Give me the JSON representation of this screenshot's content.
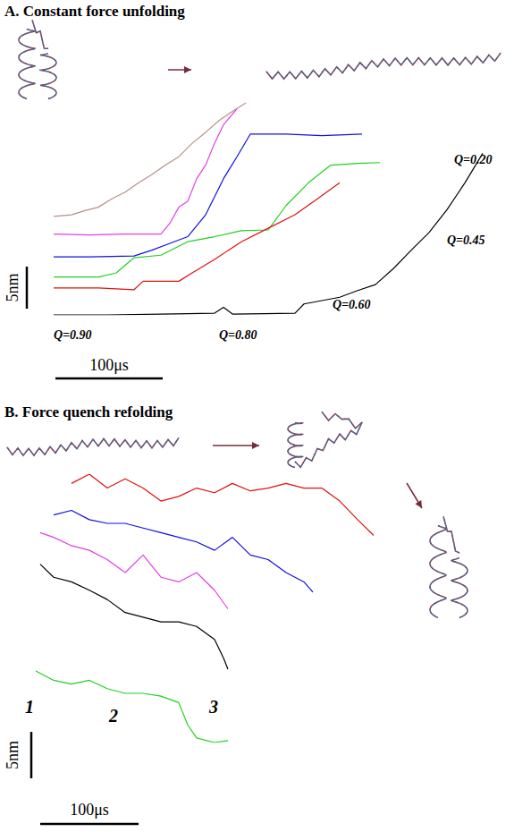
{
  "chart_data": [
    {
      "type": "line",
      "title": "A. Constant force unfolding",
      "tick_labels": false,
      "grid": false,
      "scale_bars": {
        "x": 100,
        "x_label": "100μs",
        "y": 5,
        "y_label": "5nm"
      },
      "annotations": [
        "Q=0.90",
        "Q=0.80",
        "Q=0.60",
        "Q=0.45",
        "Q=0.20"
      ],
      "series": [
        {
          "color": "#b5908a",
          "x": [
            45.8,
            62.5,
            75,
            87.5,
            100,
            112.5,
            125,
            137.5,
            150,
            162.5,
            175,
            187.5,
            200,
            212.5,
            225
          ],
          "values": [
            13.6,
            13.8,
            14.3,
            14.7,
            15.7,
            16.5,
            17.6,
            18.6,
            19.7,
            20.7,
            22.3,
            23.6,
            25,
            26.1,
            27.1
          ]
        },
        {
          "color": "#e040e0",
          "x": [
            45.8,
            79.2,
            112.5,
            145.8,
            154.2,
            162.5,
            170.8,
            179.2,
            187.5,
            195.8,
            204.2,
            216.7
          ],
          "values": [
            11.5,
            11.4,
            11.5,
            11.5,
            12.8,
            14.7,
            15.4,
            18.1,
            19.7,
            22.3,
            24.5,
            26.4
          ]
        },
        {
          "color": "#1010e0",
          "x": [
            45.8,
            79.2,
            120.8,
            137.5,
            154.2,
            170.8,
            187.5,
            204.2,
            216.7,
            229.2,
            262.5,
            295.8,
            333.3
          ],
          "values": [
            8.8,
            8.8,
            8.9,
            9.6,
            10.4,
            11.2,
            13.8,
            18.1,
            20.7,
            23.4,
            23.4,
            23.2,
            23.4
          ]
        },
        {
          "color": "#20d020",
          "x": [
            45.8,
            87.5,
            104.2,
            120.8,
            145.8,
            170.8,
            195.8,
            220.8,
            245.8,
            262.5,
            283.3,
            304.2,
            329.2,
            350
          ],
          "values": [
            6.4,
            6.4,
            6.9,
            8.7,
            9.0,
            10.6,
            11.2,
            11.9,
            12.0,
            14.9,
            17.6,
            19.7,
            19.9,
            20.0
          ]
        },
        {
          "color": "#e01010",
          "x": [
            45.8,
            87.5,
            120.8,
            129.2,
            162.5,
            175,
            195.8,
            220.8,
            245.8,
            270.8,
            291.7,
            312.5
          ],
          "values": [
            5.1,
            5.1,
            4.9,
            5.9,
            5.9,
            6.9,
            8.5,
            10.6,
            12.2,
            13.8,
            15.7,
            17.6
          ]
        },
        {
          "color": "#000000",
          "x": [
            45.8,
            95.8,
            145.8,
            195.8,
            204.2,
            212.5,
            270.8,
            279.2,
            312.5,
            329.2,
            345.8,
            362.5,
            379.2,
            395.8,
            412.5,
            429.2,
            445.8
          ],
          "values": [
            1.9,
            1.9,
            2.0,
            2.1,
            2.8,
            2.0,
            2.1,
            3.2,
            4.0,
            4.8,
            5.5,
            7.4,
            9.6,
            11.7,
            14.4,
            17.6,
            21.1
          ]
        }
      ]
    },
    {
      "type": "line",
      "title": "B. Force quench refolding",
      "tick_labels": false,
      "grid": false,
      "scale_bars": {
        "x": 100,
        "x_label": "100μs",
        "y": 5,
        "y_label": "5nm"
      },
      "annotations": [
        "1",
        "2",
        "3"
      ],
      "series": [
        {
          "color": "#e01010",
          "x": [
            54.5,
            72.7,
            90.9,
            109.1,
            127.3,
            145.5,
            163.6,
            181.8,
            200,
            218.2,
            236.4,
            254.5,
            272.7,
            290.9,
            309.1,
            327.3,
            345.5,
            361.8
          ],
          "values": [
            32.7,
            33.7,
            32.2,
            33.2,
            32.2,
            30.8,
            31.3,
            32.2,
            31.7,
            32.7,
            31.9,
            32.2,
            32.7,
            32.2,
            32.2,
            30.8,
            28.8,
            27.1
          ]
        },
        {
          "color": "#1010e0",
          "x": [
            36.4,
            54.5,
            72.7,
            90.9,
            109.1,
            127.3,
            145.5,
            163.6,
            181.8,
            200,
            218.2,
            236.4,
            254.5,
            272.7,
            290.9,
            300
          ],
          "values": [
            29.3,
            29.8,
            28.8,
            28.4,
            28.4,
            27.9,
            27.4,
            26.9,
            26.4,
            25.5,
            26.9,
            25,
            24.5,
            23.1,
            22.1,
            21
          ]
        },
        {
          "color": "#e040e0",
          "x": [
            22.7,
            36.4,
            54.5,
            72.7,
            90.9,
            109.1,
            127.3,
            145.5,
            163.6,
            181.8,
            200,
            213.6
          ],
          "values": [
            27.4,
            26.9,
            26,
            25.5,
            24.5,
            23.1,
            25,
            22.6,
            22.1,
            23.1,
            21.2,
            19.2
          ]
        },
        {
          "color": "#000000",
          "x": [
            22.7,
            36.4,
            54.5,
            72.7,
            90.9,
            109.1,
            127.3,
            145.5,
            163.6,
            181.8,
            200,
            209.1,
            213.6
          ],
          "values": [
            24,
            22.6,
            22.1,
            21.2,
            20.2,
            18.8,
            18.3,
            17.8,
            17.8,
            17.3,
            15.9,
            13.9,
            12.7
          ]
        },
        {
          "color": "#20d020",
          "x": [
            18.2,
            36.4,
            54.5,
            72.7,
            90.9,
            109.1,
            127.3,
            145.5,
            163.6,
            172.7,
            181.8,
            200,
            213.6
          ],
          "values": [
            12.5,
            11.5,
            11.1,
            11.5,
            10.6,
            10.1,
            10.1,
            9.8,
            9.1,
            6.7,
            5.3,
            4.8,
            5.0
          ]
        }
      ]
    }
  ]
}
